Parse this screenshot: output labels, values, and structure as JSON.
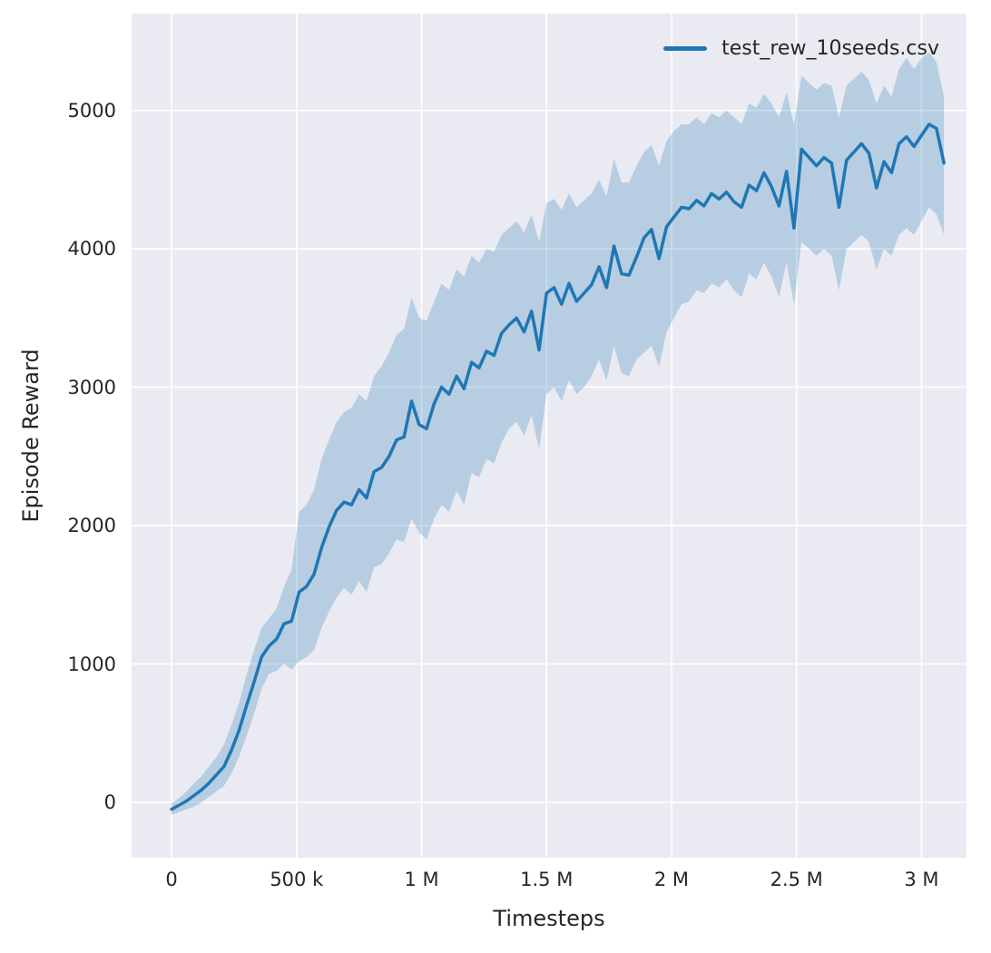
{
  "figure": {
    "background": "#ffffff",
    "plot_background": "#eaeaf2",
    "grid_color": "#ffffff",
    "text_color": "#262626"
  },
  "chart_data": {
    "type": "line",
    "title": "",
    "xlabel": "Timesteps",
    "ylabel": "Episode Reward",
    "grid": true,
    "legend": {
      "position": "upper right",
      "label": "test_rew_10seeds.csv"
    },
    "x_units": "millions of timesteps",
    "xlim": [
      -0.16,
      3.18
    ],
    "ylim": [
      -400,
      5700
    ],
    "x_ticks": [
      0,
      0.5,
      1,
      1.5,
      2,
      2.5,
      3
    ],
    "x_tick_labels": [
      "0",
      "500 k",
      "1 M",
      "1.5 M",
      "2 M",
      "2.5 M",
      "3 M"
    ],
    "y_ticks": [
      0,
      1000,
      2000,
      3000,
      4000,
      5000
    ],
    "y_tick_labels": [
      "0",
      "1000",
      "2000",
      "3000",
      "4000",
      "5000"
    ],
    "series": [
      {
        "name": "test_rew_10seeds.csv",
        "color": "#1f77b4",
        "line_width": 3.5,
        "band_color": "#1f77b4",
        "band_opacity": 0.25,
        "x": [
          0,
          0.03,
          0.06,
          0.09,
          0.12,
          0.15,
          0.18,
          0.21,
          0.24,
          0.27,
          0.3,
          0.33,
          0.36,
          0.39,
          0.42,
          0.45,
          0.48,
          0.51,
          0.54,
          0.57,
          0.6,
          0.63,
          0.66,
          0.69,
          0.72,
          0.75,
          0.78,
          0.81,
          0.84,
          0.87,
          0.9,
          0.93,
          0.96,
          0.99,
          1.02,
          1.05,
          1.08,
          1.11,
          1.14,
          1.17,
          1.2,
          1.23,
          1.26,
          1.29,
          1.32,
          1.35,
          1.38,
          1.41,
          1.44,
          1.47,
          1.5,
          1.53,
          1.56,
          1.59,
          1.62,
          1.65,
          1.68,
          1.71,
          1.74,
          1.77,
          1.8,
          1.83,
          1.86,
          1.89,
          1.92,
          1.95,
          1.98,
          2.01,
          2.04,
          2.07,
          2.1,
          2.13,
          2.16,
          2.19,
          2.22,
          2.25,
          2.28,
          2.31,
          2.34,
          2.37,
          2.4,
          2.43,
          2.46,
          2.49,
          2.52,
          2.55,
          2.58,
          2.61,
          2.64,
          2.67,
          2.7,
          2.73,
          2.76,
          2.79,
          2.82,
          2.85,
          2.88,
          2.91,
          2.94,
          2.97,
          3.0,
          3.03,
          3.06,
          3.09
        ],
        "mean": [
          -50,
          -20,
          10,
          50,
          90,
          140,
          200,
          260,
          380,
          520,
          700,
          870,
          1050,
          1130,
          1180,
          1290,
          1310,
          1520,
          1560,
          1650,
          1840,
          1990,
          2110,
          2170,
          2150,
          2260,
          2200,
          2390,
          2420,
          2500,
          2620,
          2640,
          2900,
          2730,
          2700,
          2880,
          3000,
          2950,
          3080,
          2990,
          3180,
          3140,
          3260,
          3230,
          3390,
          3450,
          3500,
          3400,
          3550,
          3270,
          3680,
          3720,
          3600,
          3750,
          3620,
          3680,
          3740,
          3870,
          3720,
          4020,
          3820,
          3810,
          3940,
          4080,
          4140,
          3930,
          4160,
          4230,
          4300,
          4290,
          4350,
          4310,
          4400,
          4360,
          4410,
          4340,
          4300,
          4460,
          4420,
          4550,
          4450,
          4310,
          4560,
          4150,
          4720,
          4660,
          4600,
          4660,
          4620,
          4300,
          4640,
          4700,
          4760,
          4690,
          4440,
          4630,
          4550,
          4760,
          4810,
          4740,
          4820,
          4900,
          4870,
          4620
        ],
        "band_low": [
          -90,
          -70,
          -50,
          -30,
          0,
          40,
          80,
          120,
          210,
          330,
          480,
          640,
          820,
          930,
          950,
          1000,
          960,
          1020,
          1050,
          1100,
          1260,
          1380,
          1480,
          1550,
          1500,
          1600,
          1520,
          1700,
          1720,
          1800,
          1900,
          1880,
          2050,
          1950,
          1900,
          2050,
          2150,
          2100,
          2250,
          2150,
          2380,
          2350,
          2480,
          2450,
          2600,
          2700,
          2750,
          2650,
          2800,
          2550,
          2950,
          3000,
          2900,
          3050,
          2950,
          3000,
          3080,
          3200,
          3050,
          3300,
          3100,
          3080,
          3200,
          3250,
          3300,
          3150,
          3400,
          3500,
          3600,
          3620,
          3700,
          3680,
          3750,
          3720,
          3780,
          3700,
          3650,
          3820,
          3780,
          3900,
          3800,
          3650,
          3900,
          3600,
          4050,
          4000,
          3950,
          4000,
          3950,
          3700,
          4000,
          4050,
          4100,
          4050,
          3850,
          4000,
          3950,
          4100,
          4150,
          4100,
          4200,
          4300,
          4250,
          4100
        ],
        "band_high": [
          -10,
          30,
          80,
          140,
          190,
          260,
          330,
          420,
          560,
          720,
          920,
          1100,
          1260,
          1330,
          1400,
          1560,
          1680,
          2100,
          2150,
          2260,
          2480,
          2620,
          2750,
          2820,
          2850,
          2950,
          2900,
          3080,
          3150,
          3250,
          3380,
          3420,
          3650,
          3500,
          3480,
          3620,
          3750,
          3700,
          3850,
          3800,
          3950,
          3900,
          4000,
          3980,
          4100,
          4150,
          4200,
          4120,
          4250,
          4050,
          4330,
          4360,
          4280,
          4400,
          4300,
          4350,
          4400,
          4500,
          4380,
          4650,
          4480,
          4480,
          4600,
          4700,
          4750,
          4600,
          4780,
          4850,
          4900,
          4900,
          4950,
          4900,
          4980,
          4950,
          5000,
          4950,
          4900,
          5050,
          5020,
          5120,
          5050,
          4950,
          5130,
          4900,
          5250,
          5200,
          5150,
          5200,
          5180,
          4950,
          5180,
          5230,
          5280,
          5220,
          5050,
          5180,
          5100,
          5300,
          5380,
          5300,
          5380,
          5420,
          5350,
          5100
        ]
      }
    ]
  }
}
